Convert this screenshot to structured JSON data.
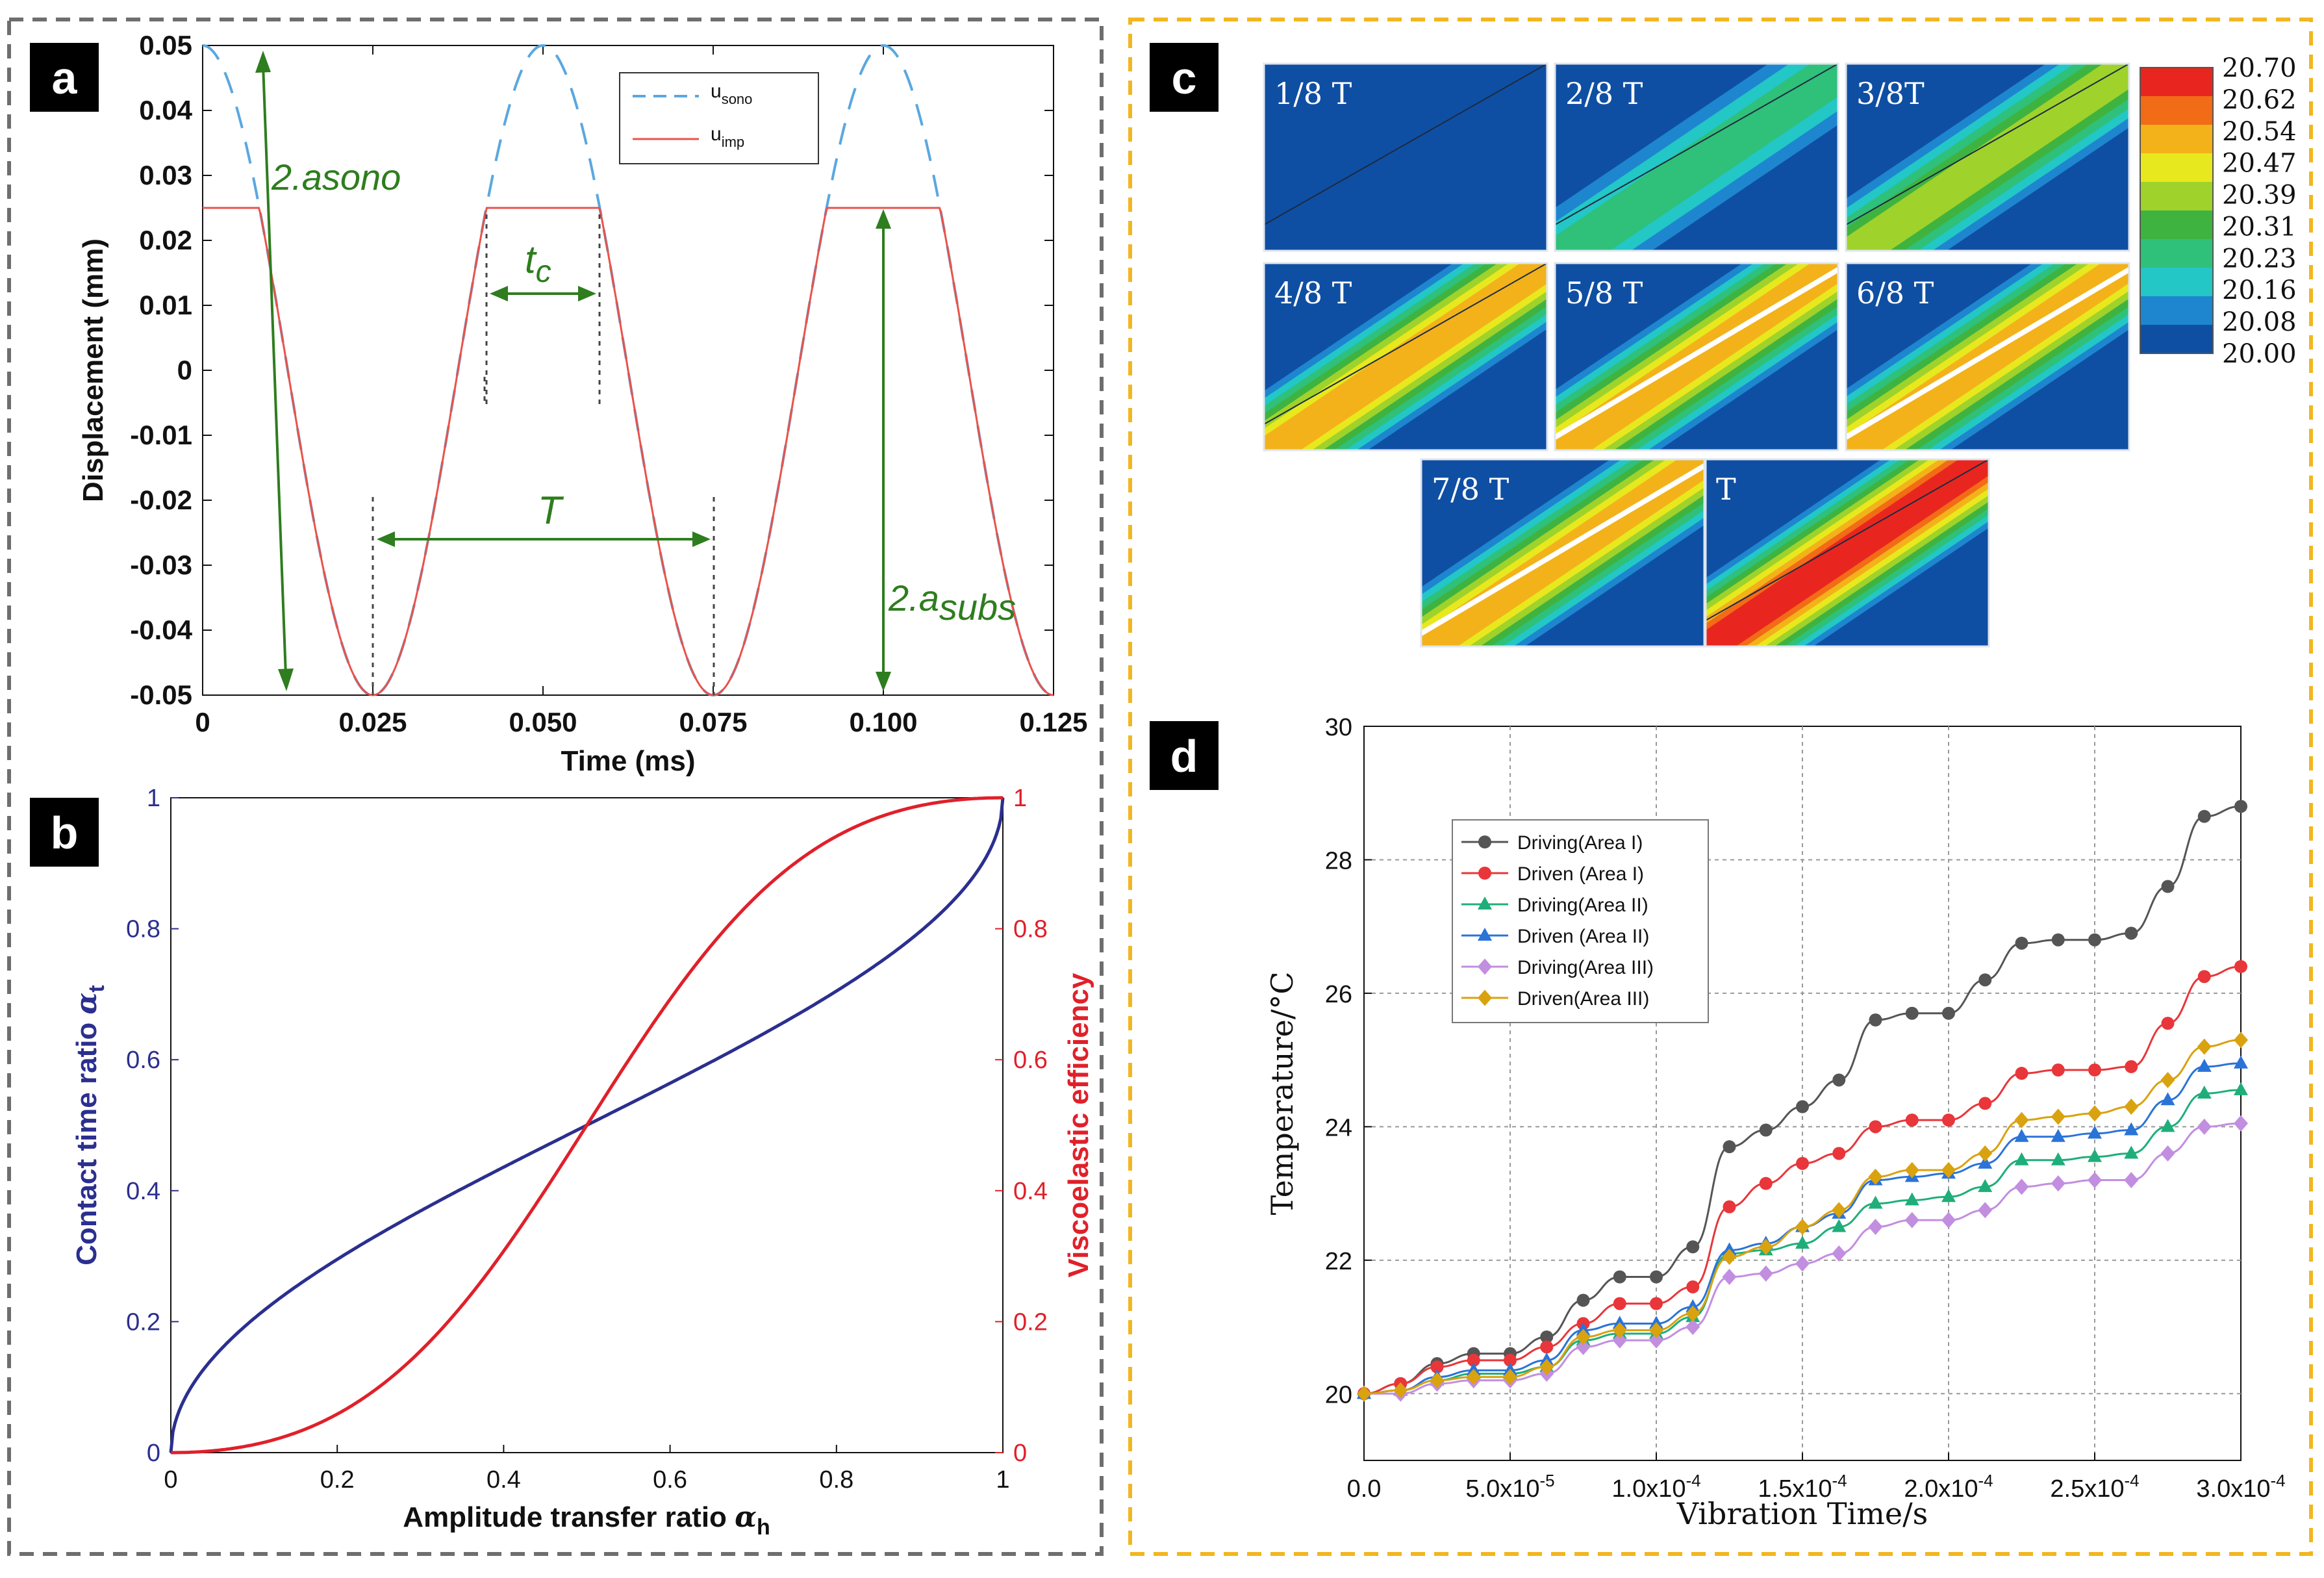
{
  "panels": {
    "a": "a",
    "b": "b",
    "c": "c",
    "d": "d"
  },
  "chart_data": [
    {
      "id": "a",
      "type": "line",
      "xlabel": "Time (ms)",
      "ylabel": "Displacement (mm)",
      "xlim": [
        0,
        0.125
      ],
      "ylim": [
        -0.05,
        0.05
      ],
      "xticks": [
        "0",
        "0.025",
        "0.050",
        "0.075",
        "0.100",
        "0.125"
      ],
      "yticks": [
        "0.05",
        "0.04",
        "0.03",
        "0.02",
        "0.01",
        "0",
        "-0.01",
        "-0.02",
        "-0.03",
        "-0.04",
        "-0.05"
      ],
      "series": [
        {
          "name": "u_sono",
          "legend_main": "u",
          "legend_sub": "sono",
          "style": "dashed",
          "color": "#5aa7e0",
          "amplitude": 0.05,
          "period": 0.05
        },
        {
          "name": "u_imp",
          "legend_main": "u",
          "legend_sub": "imp",
          "style": "solid",
          "color": "#e8534b",
          "amplitude": 0.05,
          "clip": 0.025,
          "period": 0.05
        }
      ],
      "annotations": {
        "a_sono_main": "2.a",
        "a_sono_sub": "sono",
        "tc_main": "t",
        "tc_sub": "c",
        "period": "T",
        "a_subs_main": "2.a",
        "a_subs_sub": "subs"
      }
    },
    {
      "id": "b",
      "type": "line",
      "xlabel_main": "Amplitude transfer ratio ",
      "xlabel_sym": "α",
      "xlabel_sub": "h",
      "ylabel_left_main": "Contact time ratio ",
      "ylabel_left_sym": "α",
      "ylabel_left_sub": "t",
      "ylabel_right": "Viscoelastic efficiency",
      "xlim": [
        0,
        1
      ],
      "ylim": [
        0,
        1
      ],
      "xticks": [
        "0",
        "0.2",
        "0.4",
        "0.6",
        "0.8",
        "1"
      ],
      "yticks_left": [
        "0",
        "0.2",
        "0.4",
        "0.6",
        "0.8",
        "1"
      ],
      "yticks_right": [
        "0",
        "0.2",
        "0.4",
        "0.6",
        "0.8",
        "1"
      ],
      "series": [
        {
          "name": "Contact time ratio",
          "axis": "left",
          "color": "#2b2f8f",
          "formula": "acos(1-2x)/pi"
        },
        {
          "name": "Viscoelastic efficiency",
          "axis": "right",
          "color": "#e0202a",
          "formula": "x^2/(x^2+(1-x)^2)"
        }
      ]
    },
    {
      "id": "c",
      "type": "heatmap",
      "stages": [
        "1/8 T",
        "2/8 T",
        "3/8T",
        "4/8 T",
        "5/8 T",
        "6/8 T",
        "7/8 T",
        "T"
      ],
      "stage_intensity": [
        0.0,
        0.3,
        0.55,
        0.75,
        0.78,
        0.8,
        0.75,
        1.0
      ],
      "colorbar_values": [
        "20.70",
        "20.62",
        "20.54",
        "20.47",
        "20.39",
        "20.31",
        "20.23",
        "20.16",
        "20.08",
        "20.00"
      ],
      "colorbar_colors": [
        "#e8261f",
        "#f26b16",
        "#f3b21a",
        "#e8e81e",
        "#9fd22b",
        "#3fb340",
        "#2fc07a",
        "#22c7c6",
        "#1d86cf",
        "#0f4fa3"
      ]
    },
    {
      "id": "d",
      "type": "line",
      "xlabel": "Vibration Time/s",
      "ylabel": "Temperature/°C",
      "xlim": [
        0,
        0.0003
      ],
      "ylim": [
        19,
        30
      ],
      "xticks": [
        "0.0",
        "5.0x10",
        "1.0x10",
        "1.5x10",
        "2.0x10",
        "2.5x10",
        "3.0x10"
      ],
      "xtick_exponents": [
        "",
        "-5",
        "-4",
        "-4",
        "-4",
        "-4",
        "-4"
      ],
      "yticks": [
        "20",
        "22",
        "24",
        "26",
        "28",
        "30"
      ],
      "x": [
        0,
        1.25e-05,
        2.5e-05,
        3.75e-05,
        5e-05,
        6.25e-05,
        7.5e-05,
        8.75e-05,
        0.0001,
        0.0001125,
        0.000125,
        0.0001375,
        0.00015,
        0.0001625,
        0.000175,
        0.0001875,
        0.0002,
        0.0002125,
        0.000225,
        0.0002375,
        0.00025,
        0.0002625,
        0.000275,
        0.0002875,
        0.0003
      ],
      "series": [
        {
          "name": "Driving(Area I)",
          "color": "#555555",
          "marker": "circle",
          "values": [
            20.0,
            20.15,
            20.45,
            20.6,
            20.6,
            20.85,
            21.4,
            21.75,
            21.75,
            22.2,
            23.7,
            23.95,
            24.3,
            24.7,
            25.6,
            25.7,
            25.7,
            26.2,
            26.75,
            26.8,
            26.8,
            26.9,
            27.6,
            28.65,
            28.8
          ]
        },
        {
          "name": "Driven (Area I)",
          "color": "#e8363a",
          "marker": "circle",
          "values": [
            20.0,
            20.15,
            20.4,
            20.5,
            20.5,
            20.7,
            21.05,
            21.35,
            21.35,
            21.6,
            22.8,
            23.15,
            23.45,
            23.6,
            24.0,
            24.1,
            24.1,
            24.35,
            24.8,
            24.85,
            24.85,
            24.9,
            25.55,
            26.25,
            26.4
          ]
        },
        {
          "name": "Driving(Area II)",
          "color": "#1fae7a",
          "marker": "triangle",
          "values": [
            20.0,
            20.05,
            20.2,
            20.3,
            20.3,
            20.4,
            20.8,
            20.9,
            20.9,
            21.15,
            22.1,
            22.15,
            22.25,
            22.5,
            22.85,
            22.9,
            22.95,
            23.1,
            23.5,
            23.5,
            23.55,
            23.6,
            24.0,
            24.5,
            24.55
          ]
        },
        {
          "name": "Driven (Area II)",
          "color": "#2a73d8",
          "marker": "triangle",
          "values": [
            20.0,
            20.05,
            20.25,
            20.35,
            20.35,
            20.5,
            20.95,
            21.05,
            21.05,
            21.3,
            22.15,
            22.25,
            22.5,
            22.7,
            23.2,
            23.25,
            23.3,
            23.45,
            23.85,
            23.85,
            23.9,
            23.95,
            24.4,
            24.9,
            24.95
          ]
        },
        {
          "name": "Driving(Area III)",
          "color": "#c28ee0",
          "marker": "diamond",
          "values": [
            20.0,
            20.0,
            20.15,
            20.2,
            20.2,
            20.3,
            20.7,
            20.8,
            20.8,
            21.0,
            21.75,
            21.8,
            21.95,
            22.1,
            22.5,
            22.6,
            22.6,
            22.75,
            23.1,
            23.15,
            23.2,
            23.2,
            23.6,
            24.0,
            24.05
          ]
        },
        {
          "name": "Driven(Area III)",
          "color": "#d9a20f",
          "marker": "diamond",
          "values": [
            20.0,
            20.05,
            20.2,
            20.25,
            20.25,
            20.4,
            20.85,
            20.95,
            20.95,
            21.2,
            22.05,
            22.2,
            22.5,
            22.75,
            23.25,
            23.35,
            23.35,
            23.6,
            24.1,
            24.15,
            24.2,
            24.3,
            24.7,
            25.2,
            25.3
          ]
        }
      ]
    }
  ]
}
